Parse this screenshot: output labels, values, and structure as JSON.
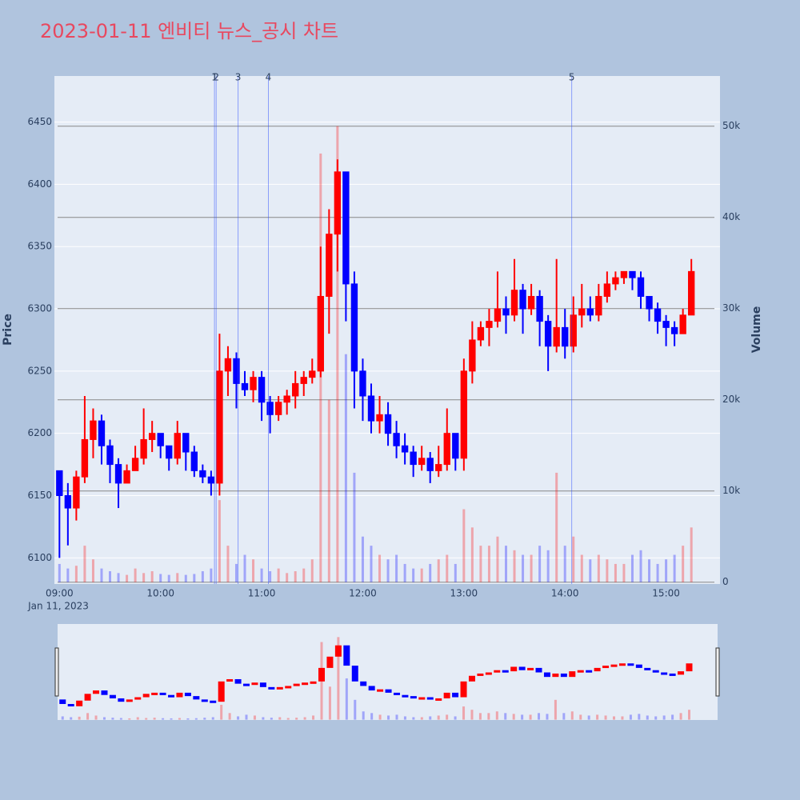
{
  "chart_data": {
    "type": "candlestick",
    "title": "2023-01-11 엔비티 뉴스_공시 차트",
    "y_label": "Price",
    "y2_label": "Volume",
    "x_date_label": "Jan 11, 2023",
    "colors": {
      "increasing": "#ff0000",
      "decreasing": "#0000ff"
    },
    "x": [
      "09:00",
      "09:05",
      "09:10",
      "09:15",
      "09:20",
      "09:25",
      "09:30",
      "09:35",
      "09:40",
      "09:45",
      "09:50",
      "09:55",
      "10:00",
      "10:05",
      "10:10",
      "10:15",
      "10:20",
      "10:25",
      "10:30",
      "10:35",
      "10:40",
      "10:45",
      "10:50",
      "10:55",
      "11:00",
      "11:05",
      "11:10",
      "11:15",
      "11:20",
      "11:25",
      "11:30",
      "11:35",
      "11:40",
      "11:45",
      "11:50",
      "11:55",
      "12:00",
      "12:05",
      "12:10",
      "12:15",
      "12:20",
      "12:25",
      "12:30",
      "12:35",
      "12:40",
      "12:45",
      "12:50",
      "12:55",
      "13:00",
      "13:05",
      "13:10",
      "13:15",
      "13:20",
      "13:25",
      "13:30",
      "13:35",
      "13:40",
      "13:45",
      "13:50",
      "13:55",
      "14:00",
      "14:05",
      "14:10",
      "14:15",
      "14:20",
      "14:25",
      "14:30",
      "14:35",
      "14:40",
      "14:45",
      "14:50",
      "14:55",
      "15:00",
      "15:05",
      "15:10",
      "15:15"
    ],
    "open": [
      6170,
      6150,
      6140,
      6165,
      6195,
      6210,
      6190,
      6175,
      6160,
      6170,
      6180,
      6195,
      6200,
      6190,
      6180,
      6200,
      6185,
      6170,
      6165,
      6160,
      6250,
      6260,
      6240,
      6235,
      6245,
      6225,
      6215,
      6225,
      6230,
      6240,
      6245,
      6250,
      6310,
      6360,
      6410,
      6320,
      6250,
      6230,
      6210,
      6215,
      6200,
      6190,
      6185,
      6175,
      6180,
      6170,
      6175,
      6200,
      6180,
      6250,
      6275,
      6285,
      6290,
      6300,
      6295,
      6315,
      6300,
      6310,
      6290,
      6270,
      6285,
      6270,
      6295,
      6300,
      6295,
      6310,
      6320,
      6325,
      6330,
      6325,
      6310,
      6300,
      6290,
      6285,
      6280,
      6295
    ],
    "high": [
      6170,
      6160,
      6170,
      6230,
      6220,
      6215,
      6195,
      6180,
      6175,
      6190,
      6220,
      6210,
      6200,
      6190,
      6210,
      6200,
      6190,
      6175,
      6170,
      6280,
      6270,
      6265,
      6250,
      6250,
      6250,
      6230,
      6230,
      6235,
      6250,
      6250,
      6260,
      6350,
      6380,
      6420,
      6410,
      6330,
      6260,
      6240,
      6230,
      6225,
      6210,
      6200,
      6190,
      6190,
      6185,
      6190,
      6220,
      6200,
      6260,
      6290,
      6290,
      6300,
      6330,
      6310,
      6340,
      6320,
      6320,
      6315,
      6295,
      6340,
      6300,
      6310,
      6320,
      6310,
      6320,
      6330,
      6330,
      6330,
      6330,
      6330,
      6310,
      6305,
      6295,
      6290,
      6300,
      6340
    ],
    "low": [
      6100,
      6110,
      6130,
      6160,
      6180,
      6175,
      6160,
      6140,
      6160,
      6170,
      6175,
      6185,
      6180,
      6170,
      6175,
      6170,
      6165,
      6160,
      6150,
      6150,
      6230,
      6220,
      6230,
      6225,
      6210,
      6200,
      6210,
      6215,
      6220,
      6230,
      6240,
      6245,
      6280,
      6330,
      6290,
      6220,
      6210,
      6200,
      6200,
      6190,
      6180,
      6175,
      6165,
      6170,
      6160,
      6165,
      6170,
      6170,
      6170,
      6240,
      6270,
      6270,
      6285,
      6280,
      6290,
      6280,
      6295,
      6270,
      6250,
      6265,
      6260,
      6265,
      6285,
      6290,
      6290,
      6305,
      6315,
      6320,
      6315,
      6300,
      6290,
      6280,
      6270,
      6270,
      6280,
      6295
    ],
    "close": [
      6150,
      6140,
      6165,
      6195,
      6210,
      6190,
      6175,
      6160,
      6170,
      6180,
      6195,
      6200,
      6190,
      6180,
      6200,
      6185,
      6170,
      6165,
      6160,
      6250,
      6260,
      6240,
      6235,
      6245,
      6225,
      6215,
      6225,
      6230,
      6240,
      6245,
      6250,
      6310,
      6360,
      6410,
      6320,
      6250,
      6230,
      6210,
      6215,
      6200,
      6190,
      6185,
      6175,
      6180,
      6170,
      6175,
      6200,
      6180,
      6250,
      6275,
      6285,
      6290,
      6300,
      6295,
      6315,
      6300,
      6310,
      6290,
      6270,
      6285,
      6270,
      6295,
      6300,
      6295,
      6310,
      6320,
      6325,
      6330,
      6325,
      6310,
      6300,
      6290,
      6285,
      6280,
      6295,
      6330
    ],
    "volume": [
      2000,
      1500,
      1800,
      4000,
      2500,
      1500,
      1200,
      1000,
      800,
      1500,
      1000,
      1200,
      900,
      800,
      1000,
      800,
      900,
      1200,
      1500,
      9000,
      4000,
      2000,
      3000,
      2500,
      1500,
      1200,
      1500,
      1000,
      1200,
      1500,
      2500,
      47000,
      20000,
      50000,
      25000,
      12000,
      5000,
      4000,
      3000,
      2500,
      3000,
      2000,
      1500,
      1500,
      2000,
      2500,
      3000,
      2000,
      8000,
      6000,
      4000,
      4000,
      5000,
      4000,
      3500,
      3000,
      3000,
      4000,
      3500,
      12000,
      4000,
      5000,
      3000,
      2500,
      3000,
      2500,
      2000,
      2000,
      3000,
      3500,
      2500,
      2000,
      2500,
      3000,
      4000,
      6000
    ],
    "xlim": [
      "08:57",
      "15:32"
    ],
    "xticks": [
      "09:00",
      "10:00",
      "11:00",
      "12:00",
      "13:00",
      "14:00",
      "15:00"
    ],
    "ylim": [
      6079,
      6487
    ],
    "yticks": [
      6100,
      6150,
      6200,
      6250,
      6300,
      6350,
      6400,
      6450
    ],
    "y2lim": [
      -200,
      55500
    ],
    "y2ticks": [
      0,
      {
        "value": 10000,
        "label": "10k"
      },
      {
        "value": 20000,
        "label": "20k"
      },
      {
        "value": 30000,
        "label": "30k"
      },
      {
        "value": 40000,
        "label": "40k"
      },
      {
        "value": 50000,
        "label": "50k"
      }
    ],
    "annotations": [
      {
        "x": "10:32",
        "label": "1"
      },
      {
        "x": "10:33",
        "label": "2"
      },
      {
        "x": "10:46",
        "label": "3"
      },
      {
        "x": "11:04",
        "label": "4"
      },
      {
        "x": "14:04",
        "label": "5"
      }
    ],
    "range_slider": true
  }
}
